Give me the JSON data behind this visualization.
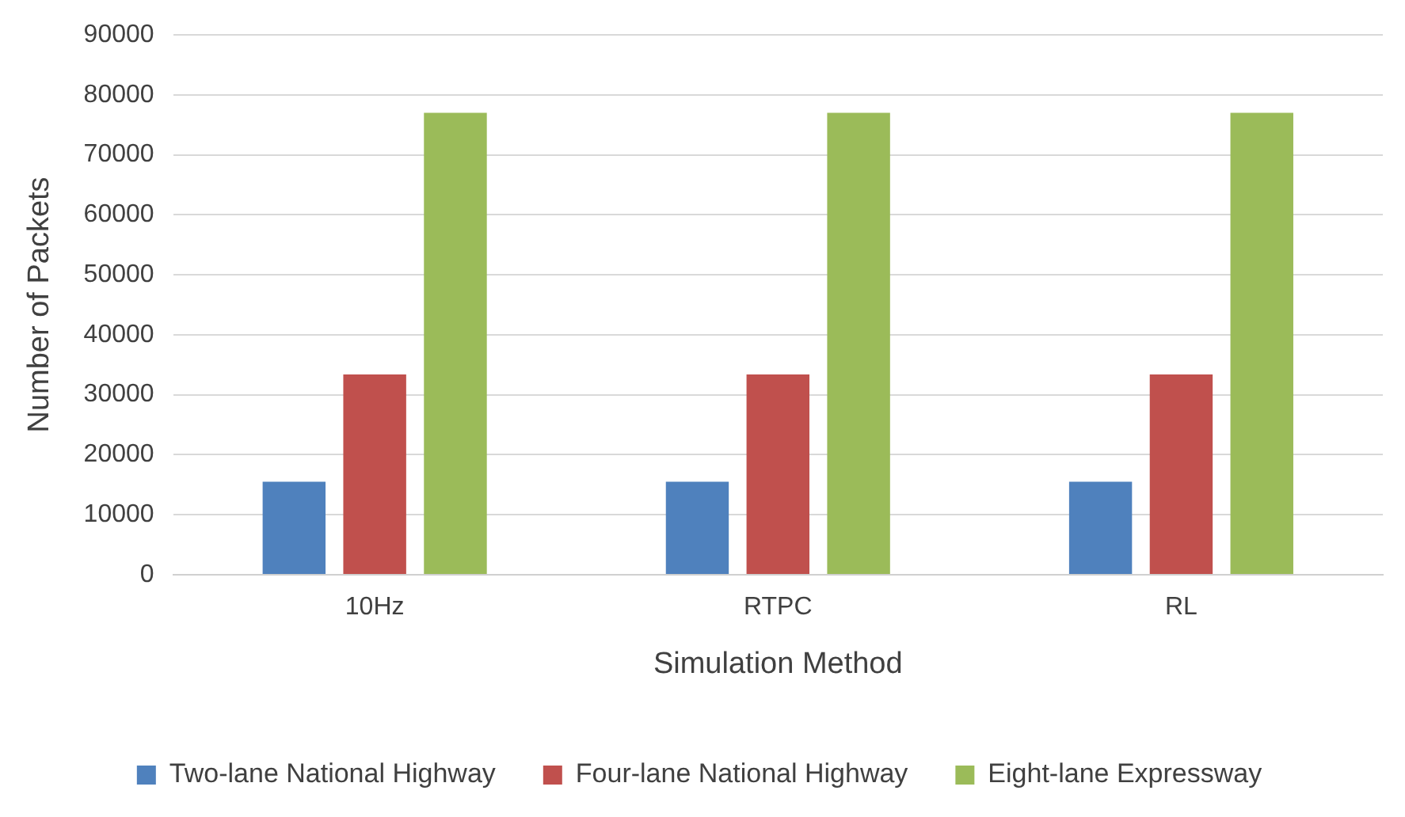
{
  "chart_data": {
    "type": "bar",
    "xlabel": "Simulation Method",
    "ylabel": "Number of Packets",
    "categories": [
      "10Hz",
      "RTPC",
      "RL"
    ],
    "series": [
      {
        "name": "Two-lane National Highway",
        "color": "#4f81bd",
        "values": [
          15500,
          15500,
          15500
        ]
      },
      {
        "name": "Four-lane National Highway",
        "color": "#c0504d",
        "values": [
          33400,
          33400,
          33400
        ]
      },
      {
        "name": "Eight-lane Expressway",
        "color": "#9bbb59",
        "values": [
          77000,
          77000,
          77000
        ]
      }
    ],
    "ylim": [
      0,
      90000
    ],
    "yticks": [
      0,
      10000,
      20000,
      30000,
      40000,
      50000,
      60000,
      70000,
      80000,
      90000
    ],
    "grid": "y",
    "legend": "bottom"
  }
}
